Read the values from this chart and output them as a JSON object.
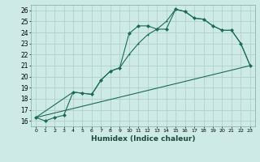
{
  "xlabel": "Humidex (Indice chaleur)",
  "background_color": "#ceeae6",
  "grid_color": "#b0d0cc",
  "line_color": "#1a6b5a",
  "xlim": [
    -0.5,
    23.5
  ],
  "ylim": [
    15.5,
    26.5
  ],
  "xticks": [
    0,
    1,
    2,
    3,
    4,
    5,
    6,
    7,
    8,
    9,
    10,
    11,
    12,
    13,
    14,
    15,
    16,
    17,
    18,
    19,
    20,
    21,
    22,
    23
  ],
  "yticks": [
    16,
    17,
    18,
    19,
    20,
    21,
    22,
    23,
    24,
    25,
    26
  ],
  "line1_x": [
    0,
    1,
    2,
    3,
    4,
    5,
    6,
    7,
    8,
    9,
    10,
    11,
    12,
    13,
    14,
    15,
    16,
    17,
    18,
    19,
    20,
    21,
    22,
    23
  ],
  "line1_y": [
    16.3,
    16.0,
    16.3,
    16.5,
    18.6,
    18.5,
    18.4,
    19.7,
    20.5,
    20.8,
    23.9,
    24.6,
    24.6,
    24.3,
    24.3,
    26.1,
    25.9,
    25.3,
    25.2,
    24.6,
    24.2,
    24.2,
    23.0,
    21.0
  ],
  "line2_x": [
    0,
    4,
    5,
    6,
    7,
    8,
    9,
    10,
    11,
    12,
    13,
    14,
    15,
    16,
    17,
    18,
    19,
    20,
    21,
    22,
    23
  ],
  "line2_y": [
    16.3,
    18.6,
    18.5,
    18.4,
    19.7,
    20.5,
    20.8,
    22.0,
    23.0,
    23.8,
    24.3,
    25.0,
    26.1,
    25.9,
    25.3,
    25.2,
    24.6,
    24.2,
    24.2,
    23.0,
    21.0
  ],
  "line3_x": [
    0,
    23
  ],
  "line3_y": [
    16.3,
    21.0
  ]
}
